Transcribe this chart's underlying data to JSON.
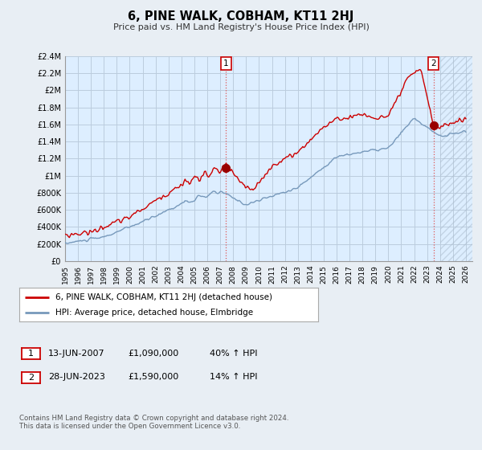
{
  "title": "6, PINE WALK, COBHAM, KT11 2HJ",
  "subtitle": "Price paid vs. HM Land Registry's House Price Index (HPI)",
  "ylim": [
    0,
    2400000
  ],
  "yticks": [
    0,
    200000,
    400000,
    600000,
    800000,
    1000000,
    1200000,
    1400000,
    1600000,
    1800000,
    2000000,
    2200000,
    2400000
  ],
  "ytick_labels": [
    "£0",
    "£200K",
    "£400K",
    "£600K",
    "£800K",
    "£1M",
    "£1.2M",
    "£1.4M",
    "£1.6M",
    "£1.8M",
    "£2M",
    "£2.2M",
    "£2.4M"
  ],
  "xlim_start": 1995.0,
  "xlim_end": 2026.5,
  "xtick_years": [
    1995,
    1996,
    1997,
    1998,
    1999,
    2000,
    2001,
    2002,
    2003,
    2004,
    2005,
    2006,
    2007,
    2008,
    2009,
    2010,
    2011,
    2012,
    2013,
    2014,
    2015,
    2016,
    2017,
    2018,
    2019,
    2020,
    2021,
    2022,
    2023,
    2024,
    2025,
    2026
  ],
  "price_color": "#cc0000",
  "hpi_line_color": "#7799bb",
  "marker1_x": 2007.45,
  "marker1_y": 1090000,
  "marker2_x": 2023.49,
  "marker2_y": 1590000,
  "hatch_start": 2024.0,
  "legend_price_label": "6, PINE WALK, COBHAM, KT11 2HJ (detached house)",
  "legend_hpi_label": "HPI: Average price, detached house, Elmbridge",
  "marker1_date": "13-JUN-2007",
  "marker1_price": "£1,090,000",
  "marker1_hpi": "40% ↑ HPI",
  "marker2_date": "28-JUN-2023",
  "marker2_price": "£1,590,000",
  "marker2_hpi": "14% ↑ HPI",
  "footer": "Contains HM Land Registry data © Crown copyright and database right 2024.\nThis data is licensed under the Open Government Licence v3.0.",
  "plot_bg_color": "#ddeeff",
  "grid_color": "#bbccdd",
  "fig_bg_color": "#e8eef4"
}
